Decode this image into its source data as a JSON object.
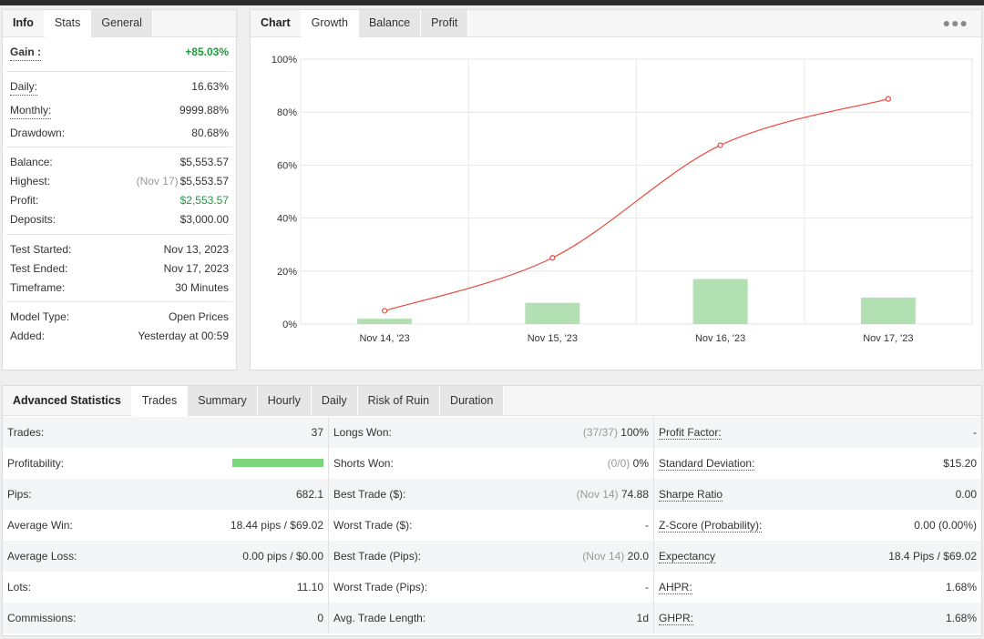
{
  "info_panel": {
    "tabs": [
      "Info",
      "Stats",
      "General"
    ],
    "gain": {
      "label": "Gain :",
      "value": "+85.03%"
    },
    "daily": {
      "label": "Daily:",
      "value": "16.63%"
    },
    "monthly": {
      "label": "Monthly:",
      "value": "9999.88%"
    },
    "drawdown": {
      "label": "Drawdown:",
      "value": "80.68%"
    },
    "balance": {
      "label": "Balance:",
      "value": "$5,553.57"
    },
    "highest": {
      "label": "Highest:",
      "date": "(Nov 17)",
      "value": "$5,553.57"
    },
    "profit": {
      "label": "Profit:",
      "value": "$2,553.57"
    },
    "deposits": {
      "label": "Deposits:",
      "value": "$3,000.00"
    },
    "test_started": {
      "label": "Test Started:",
      "value": "Nov 13, 2023"
    },
    "test_ended": {
      "label": "Test Ended:",
      "value": "Nov 17, 2023"
    },
    "timeframe": {
      "label": "Timeframe:",
      "value": "30 Minutes"
    },
    "model_type": {
      "label": "Model Type:",
      "value": "Open Prices"
    },
    "added": {
      "label": "Added:",
      "value": "Yesterday at 00:59"
    }
  },
  "chart_panel": {
    "tabs": [
      "Chart",
      "Growth",
      "Balance",
      "Profit"
    ],
    "active_tab": "Growth",
    "menu_icon": "ellipsis-icon"
  },
  "chart_data": {
    "type": "line",
    "categories": [
      "Nov 14, '23",
      "Nov 15, '23",
      "Nov 16, '23",
      "Nov 17, '23"
    ],
    "series": [
      {
        "type": "line",
        "values": [
          5,
          25,
          67.5,
          85
        ],
        "color": "#e8473c"
      },
      {
        "type": "bar",
        "values": [
          2,
          8,
          17,
          10
        ],
        "color": "#b3e0b3"
      }
    ],
    "ylim": [
      0,
      100
    ],
    "yticks": [
      "0%",
      "20%",
      "40%",
      "60%",
      "80%",
      "100%"
    ],
    "grid": true,
    "title": "",
    "xlabel": "",
    "ylabel": ""
  },
  "advanced": {
    "tabs": [
      "Advanced Statistics",
      "Trades",
      "Summary",
      "Hourly",
      "Daily",
      "Risk of Ruin",
      "Duration"
    ],
    "active_tab": "Trades",
    "rows": [
      {
        "c1": {
          "label": "Trades:",
          "value": "37"
        },
        "c2": {
          "label": "Longs Won:",
          "sub": "(37/37)",
          "value": "100%"
        },
        "c3": {
          "label": "Profit Factor:",
          "value": "-"
        }
      },
      {
        "c1": {
          "label": "Profitability:",
          "progress": 1.0
        },
        "c2": {
          "label": "Shorts Won:",
          "sub": "(0/0)",
          "value": "0%"
        },
        "c3": {
          "label": "Standard Deviation:",
          "value": "$15.20"
        }
      },
      {
        "c1": {
          "label": "Pips:",
          "value": "682.1"
        },
        "c2": {
          "label": "Best Trade ($):",
          "sub": "(Nov 14)",
          "value": "74.88"
        },
        "c3": {
          "label": "Sharpe Ratio",
          "value": "0.00"
        }
      },
      {
        "c1": {
          "label": "Average Win:",
          "value": "18.44 pips / $69.02"
        },
        "c2": {
          "label": "Worst Trade ($):",
          "value": "-"
        },
        "c3": {
          "label": "Z-Score (Probability):",
          "value": "0.00 (0.00%)"
        }
      },
      {
        "c1": {
          "label": "Average Loss:",
          "value": "0.00 pips / $0.00"
        },
        "c2": {
          "label": "Best Trade (Pips):",
          "sub": "(Nov 14)",
          "value": "20.0"
        },
        "c3": {
          "label": "Expectancy",
          "value": "18.4 Pips / $69.02"
        }
      },
      {
        "c1": {
          "label": "Lots:",
          "value": "11.10"
        },
        "c2": {
          "label": "Worst Trade (Pips):",
          "value": "-"
        },
        "c3": {
          "label": "AHPR:",
          "value": "1.68%"
        }
      },
      {
        "c1": {
          "label": "Commissions:",
          "value": "0"
        },
        "c2": {
          "label": "Avg. Trade Length:",
          "value": "1d"
        },
        "c3": {
          "label": "GHPR:",
          "value": "1.68%"
        }
      }
    ]
  }
}
